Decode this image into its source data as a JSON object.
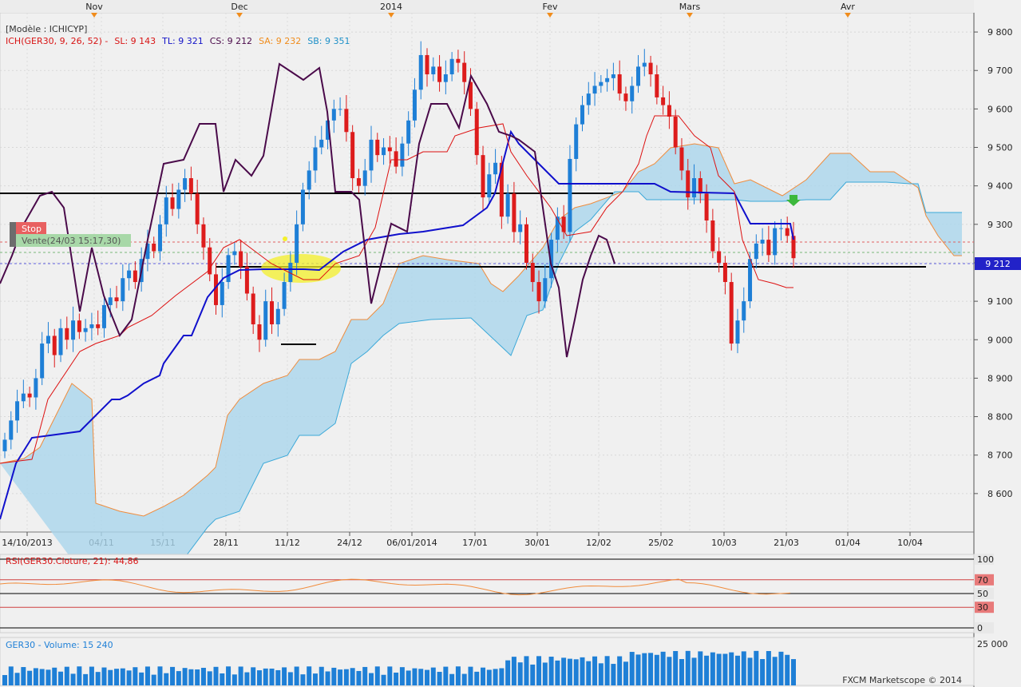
{
  "header": {
    "model_label": "[Modèle : ICHICYP]",
    "legend": {
      "prefix": "ICH(GER30, 9, 26, 52) -",
      "sl": "SL: 9 143",
      "tl": "TL: 9 321",
      "cs": "CS: 9 212",
      "sa": "SA: 9 232",
      "sb": "SB: 9 351"
    }
  },
  "month_markers": [
    "Nov",
    "Dec",
    "2014",
    "Fev",
    "Mars",
    "Avr"
  ],
  "x_tick_labels": [
    "14/10/2013",
    "04/11",
    "15/11",
    "28/11",
    "11/12",
    "24/12",
    "06/01/2014",
    "17/01",
    "30/01",
    "12/02",
    "25/02",
    "10/03",
    "21/03",
    "01/04",
    "10/04"
  ],
  "orders": {
    "stop_label": "Stop",
    "sell_label": "Vente(24/03 15:17,30)"
  },
  "price_badge": "9 212",
  "rsi_panel": {
    "title": "RSI(GER30.Cloture, 21): 44,86",
    "levels": [
      "100",
      "70",
      "50",
      "30",
      "0"
    ]
  },
  "volume_panel": {
    "title": "GER30 - Volume: 15 240",
    "max_label": "25 000"
  },
  "watermark": "FXCM Marketscope © 2014",
  "colors": {
    "bull": "#1e7fd6",
    "bear": "#dd1c1c",
    "kijun": "#1010cc",
    "tenkan": "#dd1010",
    "chikou": "#4a0a4a",
    "cloud": "#aad6ec",
    "senkou_a": "#f08c3c",
    "senkou_b": "#3aa8d8"
  },
  "chart_data": [
    {
      "type": "candlestick",
      "symbol": "GER30",
      "y_ticks": [
        8600,
        8700,
        8800,
        8900,
        9000,
        9100,
        9200,
        9300,
        9400,
        9500,
        9600,
        9700,
        9800
      ],
      "ylim": [
        8500,
        9850
      ],
      "y_tick_text": [
        "8 600",
        "8 700",
        "8 800",
        "8 900",
        "9 000",
        "9 100",
        "9 200",
        "9 300",
        "9 400",
        "9 500",
        "9 600",
        "9 700",
        "9 800"
      ],
      "closes": [
        8740,
        8790,
        8840,
        8860,
        8850,
        8900,
        8990,
        9010,
        8960,
        9030,
        9000,
        9050,
        9020,
        9030,
        9040,
        9030,
        9090,
        9110,
        9100,
        9160,
        9180,
        9150,
        9210,
        9250,
        9230,
        9300,
        9370,
        9340,
        9390,
        9420,
        9380,
        9300,
        9240,
        9170,
        9090,
        9150,
        9220,
        9230,
        9190,
        9120,
        9040,
        9000,
        9100,
        9040,
        9080,
        9150,
        9200,
        9300,
        9390,
        9440,
        9500,
        9520,
        9570,
        9600,
        9600,
        9540,
        9420,
        9400,
        9440,
        9520,
        9480,
        9500,
        9490,
        9450,
        9510,
        9570,
        9650,
        9740,
        9690,
        9710,
        9670,
        9690,
        9730,
        9720,
        9670,
        9600,
        9480,
        9370,
        9430,
        9460,
        9320,
        9380,
        9280,
        9300,
        9200,
        9150,
        9100,
        9160,
        9260,
        9320,
        9280,
        9470,
        9560,
        9610,
        9640,
        9660,
        9670,
        9680,
        9690,
        9640,
        9620,
        9660,
        9710,
        9720,
        9690,
        9630,
        9610,
        9580,
        9500,
        9440,
        9370,
        9420,
        9380,
        9310,
        9230,
        9200,
        9150,
        8990,
        9050,
        9100,
        9210,
        9250,
        9260,
        9220,
        9290,
        9290,
        9270,
        9212
      ],
      "rsi_value": 44.86,
      "rsi_levels": [
        70,
        50,
        30
      ],
      "volume_max": 25000,
      "volume_last": 15240
    }
  ]
}
